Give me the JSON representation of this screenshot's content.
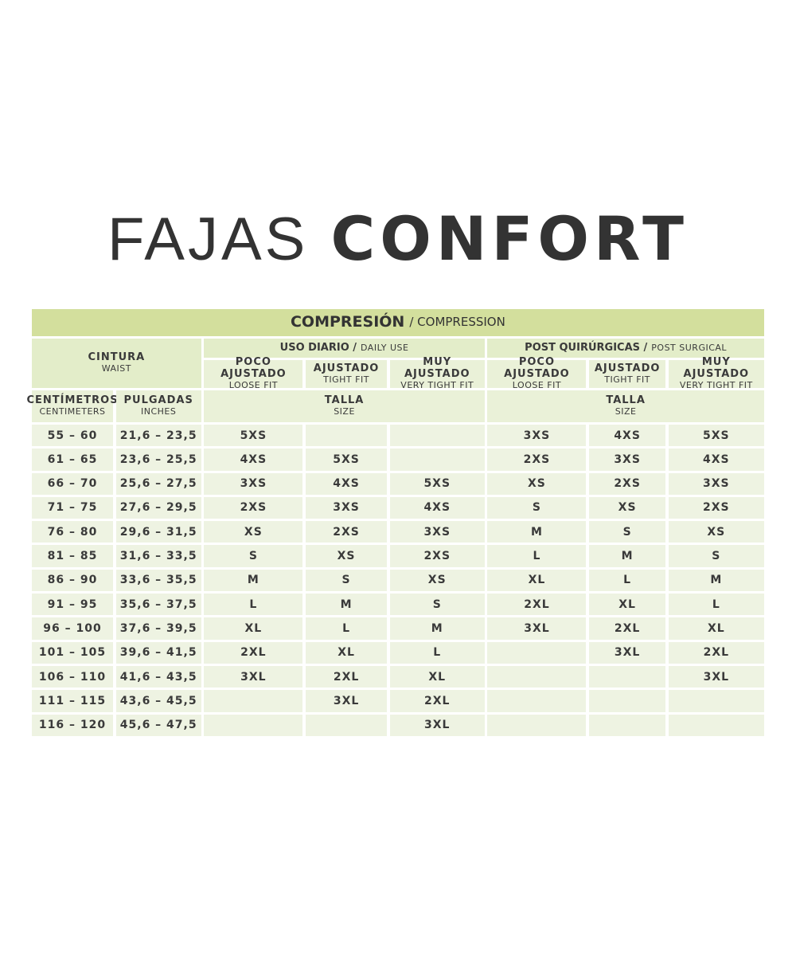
{
  "title": {
    "light": "FAJAS",
    "bold": "CONFORT"
  },
  "colors": {
    "band": "#d3df9d",
    "header": "#e3edc9",
    "row": "#eef3e2"
  },
  "table": {
    "compression": {
      "es": "COMPRESIÓN",
      "en": "/ COMPRESSION"
    },
    "waist": {
      "es": "CINTURA",
      "en": "WAIST"
    },
    "daily": {
      "es": "USO DIARIO /",
      "en": "DAILY USE"
    },
    "post": {
      "es": "POST QUIRÚRGICAS /",
      "en": "POST SURGICAL"
    },
    "fits": [
      {
        "es": "POCO AJUSTADO",
        "en": "LOOSE FIT"
      },
      {
        "es": "AJUSTADO",
        "en": "TIGHT FIT"
      },
      {
        "es": "MUY AJUSTADO",
        "en": "VERY TIGHT FIT"
      }
    ],
    "cm": {
      "es": "CENTÍMETROS",
      "en": "CENTIMETERS"
    },
    "inches": {
      "es": "PULGADAS",
      "en": "INCHES"
    },
    "size": {
      "es": "TALLA",
      "en": "SIZE"
    },
    "rows": [
      {
        "cm": "55 – 60",
        "in": "21,6 – 23,5",
        "daily": [
          "5XS",
          "",
          ""
        ],
        "post": [
          "3XS",
          "4XS",
          "5XS"
        ]
      },
      {
        "cm": "61 – 65",
        "in": "23,6 – 25,5",
        "daily": [
          "4XS",
          "5XS",
          ""
        ],
        "post": [
          "2XS",
          "3XS",
          "4XS"
        ]
      },
      {
        "cm": "66 – 70",
        "in": "25,6 – 27,5",
        "daily": [
          "3XS",
          "4XS",
          "5XS"
        ],
        "post": [
          "XS",
          "2XS",
          "3XS"
        ]
      },
      {
        "cm": "71 – 75",
        "in": "27,6 – 29,5",
        "daily": [
          "2XS",
          "3XS",
          "4XS"
        ],
        "post": [
          "S",
          "XS",
          "2XS"
        ]
      },
      {
        "cm": "76 – 80",
        "in": "29,6 – 31,5",
        "daily": [
          "XS",
          "2XS",
          "3XS"
        ],
        "post": [
          "M",
          "S",
          "XS"
        ]
      },
      {
        "cm": "81 – 85",
        "in": "31,6 – 33,5",
        "daily": [
          "S",
          "XS",
          "2XS"
        ],
        "post": [
          "L",
          "M",
          "S"
        ]
      },
      {
        "cm": "86 – 90",
        "in": "33,6 – 35,5",
        "daily": [
          "M",
          "S",
          "XS"
        ],
        "post": [
          "XL",
          "L",
          "M"
        ]
      },
      {
        "cm": "91 – 95",
        "in": "35,6 – 37,5",
        "daily": [
          "L",
          "M",
          "S"
        ],
        "post": [
          "2XL",
          "XL",
          "L"
        ]
      },
      {
        "cm": "96 – 100",
        "in": "37,6 – 39,5",
        "daily": [
          "XL",
          "L",
          "M"
        ],
        "post": [
          "3XL",
          "2XL",
          "XL"
        ]
      },
      {
        "cm": "101 – 105",
        "in": "39,6 – 41,5",
        "daily": [
          "2XL",
          "XL",
          "L"
        ],
        "post": [
          "",
          "3XL",
          "2XL"
        ]
      },
      {
        "cm": "106 – 110",
        "in": "41,6 – 43,5",
        "daily": [
          "3XL",
          "2XL",
          "XL"
        ],
        "post": [
          "",
          "",
          "3XL"
        ]
      },
      {
        "cm": "111 – 115",
        "in": "43,6 – 45,5",
        "daily": [
          "",
          "3XL",
          "2XL"
        ],
        "post": [
          "",
          "",
          ""
        ]
      },
      {
        "cm": "116 – 120",
        "in": "45,6 – 47,5",
        "daily": [
          "",
          "",
          "3XL"
        ],
        "post": [
          "",
          "",
          ""
        ]
      }
    ]
  }
}
